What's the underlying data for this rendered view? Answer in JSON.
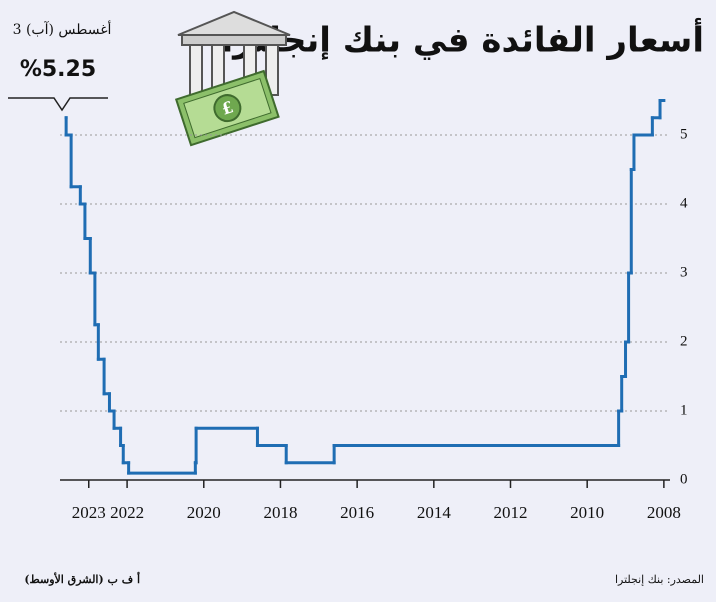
{
  "chart_data": {
    "type": "step-line",
    "title": "أسعار الفائدة في بنك إنجلترا",
    "annotation": {
      "text": "3 أغسطس (آب)",
      "label": "%5.25",
      "value": 5.25
    },
    "source": "المصدر: بنك إنجلترا",
    "credit": "أ ف ب (الشرق الأوسط)",
    "x": [
      2008.0,
      2008.1,
      2008.3,
      2008.78,
      2008.85,
      2008.92,
      2009.0,
      2009.1,
      2009.18,
      2016.6,
      2017.85,
      2018.6,
      2020.2,
      2020.22,
      2021.96,
      2022.1,
      2022.17,
      2022.34,
      2022.46,
      2022.6,
      2022.75,
      2022.84,
      2022.96,
      2023.1,
      2023.22,
      2023.46,
      2023.59
    ],
    "series": [
      {
        "color": "#1f6db3",
        "values": [
          5.5,
          5.25,
          5.0,
          4.5,
          3.0,
          2.0,
          1.5,
          1.0,
          0.5,
          0.25,
          0.5,
          0.75,
          0.25,
          0.1,
          0.25,
          0.5,
          0.75,
          1.0,
          1.25,
          1.75,
          2.25,
          3.0,
          3.5,
          4.0,
          4.25,
          5.0,
          5.25
        ]
      }
    ],
    "xlim": [
      2023.75,
      2007.84
    ],
    "xticks": [
      2008,
      2010,
      2012,
      2014,
      2016,
      2018,
      2020,
      2022,
      2023
    ],
    "ylim": [
      0,
      5.6
    ],
    "yticks": [
      0,
      1,
      2,
      3,
      4,
      5
    ],
    "grid": true
  }
}
